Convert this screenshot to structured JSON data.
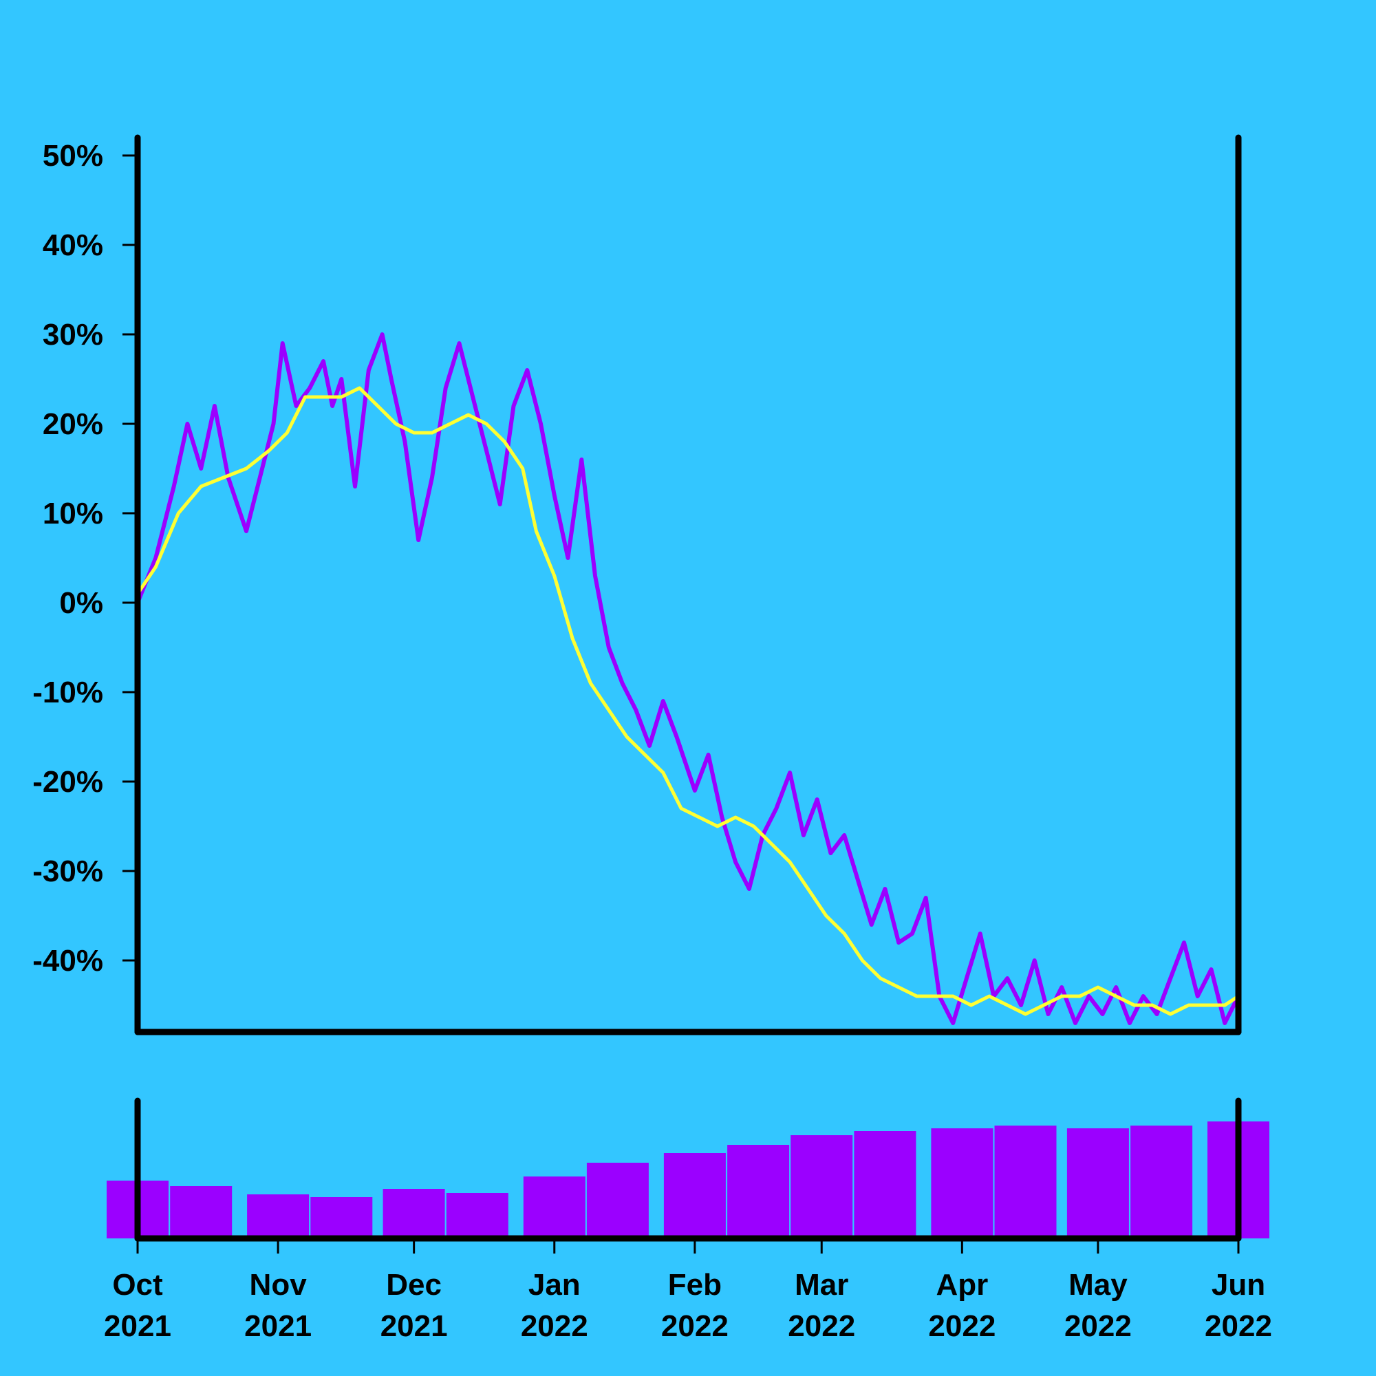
{
  "colors": {
    "background": "#33c6ff",
    "axis": "#000000",
    "price_series": "#9b00ff",
    "moving_average": "#ffff33",
    "volume_bars": "#9b00ff"
  },
  "chart_data": [
    {
      "type": "line",
      "title": "",
      "xlabel": "",
      "ylabel": "",
      "x_range": [
        "2021-10-01",
        "2022-06-01"
      ],
      "ylim": [
        -48,
        52
      ],
      "y_ticks": [
        50,
        40,
        30,
        20,
        10,
        0,
        -10,
        -20,
        -30,
        -40
      ],
      "y_tick_labels": [
        "50%",
        "40%",
        "30%",
        "20%",
        "10%",
        "0%",
        "-10%",
        "-20%",
        "-30%",
        "-40%"
      ],
      "grid": false,
      "legend": "none",
      "series": [
        {
          "role": "price",
          "color": "#9b00ff",
          "points": [
            [
              "2021-10-01",
              0
            ],
            [
              "2021-10-05",
              5
            ],
            [
              "2021-10-09",
              13
            ],
            [
              "2021-10-12",
              20
            ],
            [
              "2021-10-15",
              15
            ],
            [
              "2021-10-18",
              22
            ],
            [
              "2021-10-21",
              14
            ],
            [
              "2021-10-25",
              8
            ],
            [
              "2021-10-28",
              14
            ],
            [
              "2021-10-31",
              20
            ],
            [
              "2021-11-02",
              29
            ],
            [
              "2021-11-05",
              22
            ],
            [
              "2021-11-08",
              24
            ],
            [
              "2021-11-11",
              27
            ],
            [
              "2021-11-13",
              22
            ],
            [
              "2021-11-15",
              25
            ],
            [
              "2021-11-18",
              13
            ],
            [
              "2021-11-21",
              26
            ],
            [
              "2021-11-24",
              30
            ],
            [
              "2021-11-26",
              25
            ],
            [
              "2021-11-29",
              18
            ],
            [
              "2021-12-02",
              7
            ],
            [
              "2021-12-05",
              14
            ],
            [
              "2021-12-08",
              24
            ],
            [
              "2021-12-11",
              29
            ],
            [
              "2021-12-14",
              23
            ],
            [
              "2021-12-17",
              17
            ],
            [
              "2021-12-20",
              11
            ],
            [
              "2021-12-23",
              22
            ],
            [
              "2021-12-26",
              26
            ],
            [
              "2021-12-29",
              20
            ],
            [
              "2022-01-01",
              12
            ],
            [
              "2022-01-04",
              5
            ],
            [
              "2022-01-07",
              16
            ],
            [
              "2022-01-10",
              3
            ],
            [
              "2022-01-13",
              -5
            ],
            [
              "2022-01-16",
              -9
            ],
            [
              "2022-01-19",
              -12
            ],
            [
              "2022-01-22",
              -16
            ],
            [
              "2022-01-25",
              -11
            ],
            [
              "2022-01-28",
              -15
            ],
            [
              "2022-02-01",
              -21
            ],
            [
              "2022-02-04",
              -17
            ],
            [
              "2022-02-07",
              -24
            ],
            [
              "2022-02-10",
              -29
            ],
            [
              "2022-02-13",
              -32
            ],
            [
              "2022-02-16",
              -26
            ],
            [
              "2022-02-19",
              -23
            ],
            [
              "2022-02-22",
              -19
            ],
            [
              "2022-02-25",
              -26
            ],
            [
              "2022-02-28",
              -22
            ],
            [
              "2022-03-03",
              -28
            ],
            [
              "2022-03-06",
              -26
            ],
            [
              "2022-03-09",
              -31
            ],
            [
              "2022-03-12",
              -36
            ],
            [
              "2022-03-15",
              -32
            ],
            [
              "2022-03-18",
              -38
            ],
            [
              "2022-03-21",
              -37
            ],
            [
              "2022-03-24",
              -33
            ],
            [
              "2022-03-27",
              -44
            ],
            [
              "2022-03-30",
              -47
            ],
            [
              "2022-04-02",
              -42
            ],
            [
              "2022-04-05",
              -37
            ],
            [
              "2022-04-08",
              -44
            ],
            [
              "2022-04-11",
              -42
            ],
            [
              "2022-04-14",
              -45
            ],
            [
              "2022-04-17",
              -40
            ],
            [
              "2022-04-20",
              -46
            ],
            [
              "2022-04-23",
              -43
            ],
            [
              "2022-04-26",
              -47
            ],
            [
              "2022-04-29",
              -44
            ],
            [
              "2022-05-02",
              -46
            ],
            [
              "2022-05-05",
              -43
            ],
            [
              "2022-05-08",
              -47
            ],
            [
              "2022-05-11",
              -44
            ],
            [
              "2022-05-14",
              -46
            ],
            [
              "2022-05-17",
              -42
            ],
            [
              "2022-05-20",
              -38
            ],
            [
              "2022-05-23",
              -44
            ],
            [
              "2022-05-26",
              -41
            ],
            [
              "2022-05-29",
              -47
            ],
            [
              "2022-06-01",
              -44
            ]
          ]
        },
        {
          "role": "moving-average",
          "color": "#ffff33",
          "points": [
            [
              "2021-10-01",
              1
            ],
            [
              "2021-10-05",
              4
            ],
            [
              "2021-10-10",
              10
            ],
            [
              "2021-10-15",
              13
            ],
            [
              "2021-10-20",
              14
            ],
            [
              "2021-10-25",
              15
            ],
            [
              "2021-10-30",
              17
            ],
            [
              "2021-11-03",
              19
            ],
            [
              "2021-11-07",
              23
            ],
            [
              "2021-11-11",
              23
            ],
            [
              "2021-11-15",
              23
            ],
            [
              "2021-11-19",
              24
            ],
            [
              "2021-11-23",
              22
            ],
            [
              "2021-11-27",
              20
            ],
            [
              "2021-12-01",
              19
            ],
            [
              "2021-12-05",
              19
            ],
            [
              "2021-12-09",
              20
            ],
            [
              "2021-12-13",
              21
            ],
            [
              "2021-12-17",
              20
            ],
            [
              "2021-12-21",
              18
            ],
            [
              "2021-12-25",
              15
            ],
            [
              "2021-12-28",
              8
            ],
            [
              "2022-01-01",
              3
            ],
            [
              "2022-01-05",
              -4
            ],
            [
              "2022-01-09",
              -9
            ],
            [
              "2022-01-13",
              -12
            ],
            [
              "2022-01-17",
              -15
            ],
            [
              "2022-01-21",
              -17
            ],
            [
              "2022-01-25",
              -19
            ],
            [
              "2022-01-29",
              -23
            ],
            [
              "2022-02-02",
              -24
            ],
            [
              "2022-02-06",
              -25
            ],
            [
              "2022-02-10",
              -24
            ],
            [
              "2022-02-14",
              -25
            ],
            [
              "2022-02-18",
              -27
            ],
            [
              "2022-02-22",
              -29
            ],
            [
              "2022-02-26",
              -32
            ],
            [
              "2022-03-02",
              -35
            ],
            [
              "2022-03-06",
              -37
            ],
            [
              "2022-03-10",
              -40
            ],
            [
              "2022-03-14",
              -42
            ],
            [
              "2022-03-18",
              -43
            ],
            [
              "2022-03-22",
              -44
            ],
            [
              "2022-03-26",
              -44
            ],
            [
              "2022-03-30",
              -44
            ],
            [
              "2022-04-03",
              -45
            ],
            [
              "2022-04-07",
              -44
            ],
            [
              "2022-04-11",
              -45
            ],
            [
              "2022-04-15",
              -46
            ],
            [
              "2022-04-19",
              -45
            ],
            [
              "2022-04-23",
              -44
            ],
            [
              "2022-04-27",
              -44
            ],
            [
              "2022-05-01",
              -43
            ],
            [
              "2022-05-05",
              -44
            ],
            [
              "2022-05-09",
              -45
            ],
            [
              "2022-05-13",
              -45
            ],
            [
              "2022-05-17",
              -46
            ],
            [
              "2022-05-21",
              -45
            ],
            [
              "2022-05-25",
              -45
            ],
            [
              "2022-05-29",
              -45
            ],
            [
              "2022-06-01",
              -44
            ]
          ]
        }
      ]
    },
    {
      "type": "bar",
      "title": "",
      "xlabel": "",
      "ylabel": "",
      "role": "volume",
      "color": "#9b00ff",
      "x_range": [
        "2021-10-01",
        "2022-06-01"
      ],
      "ylim": [
        0,
        1
      ],
      "x_tick_dates": [
        "2021-10-01",
        "2021-11-01",
        "2021-12-01",
        "2022-01-01",
        "2022-02-01",
        "2022-03-01",
        "2022-04-01",
        "2022-05-01",
        "2022-06-01"
      ],
      "x_tick_labels": [
        {
          "month": "Oct",
          "year": "2021"
        },
        {
          "month": "Nov",
          "year": "2021"
        },
        {
          "month": "Dec",
          "year": "2021"
        },
        {
          "month": "Jan",
          "year": "2022"
        },
        {
          "month": "Feb",
          "year": "2022"
        },
        {
          "month": "Mar",
          "year": "2022"
        },
        {
          "month": "Apr",
          "year": "2022"
        },
        {
          "month": "May",
          "year": "2022"
        },
        {
          "month": "Jun",
          "year": "2022"
        }
      ],
      "values": [
        [
          "2021-10-01",
          0.42
        ],
        [
          "2021-10-15",
          0.38
        ],
        [
          "2021-11-01",
          0.32
        ],
        [
          "2021-11-15",
          0.3
        ],
        [
          "2021-12-01",
          0.36
        ],
        [
          "2021-12-15",
          0.33
        ],
        [
          "2022-01-01",
          0.45
        ],
        [
          "2022-01-15",
          0.55
        ],
        [
          "2022-02-01",
          0.62
        ],
        [
          "2022-02-15",
          0.68
        ],
        [
          "2022-03-01",
          0.75
        ],
        [
          "2022-03-15",
          0.78
        ],
        [
          "2022-04-01",
          0.8
        ],
        [
          "2022-04-15",
          0.82
        ],
        [
          "2022-05-01",
          0.8
        ],
        [
          "2022-05-15",
          0.82
        ],
        [
          "2022-06-01",
          0.85
        ]
      ]
    }
  ]
}
